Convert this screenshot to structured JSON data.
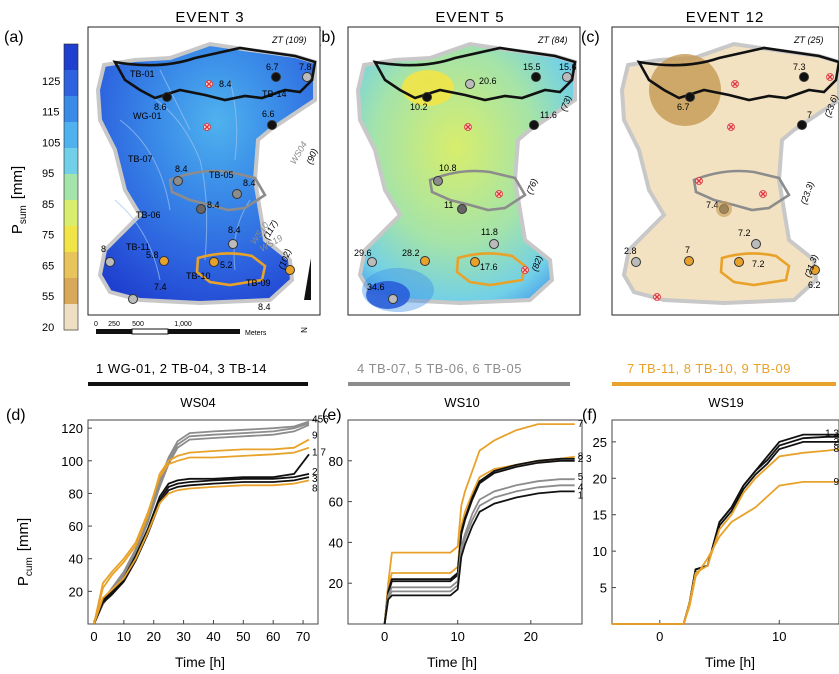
{
  "panels": {
    "a": {
      "letter": "(a)",
      "event": "EVENT 3",
      "zt": "ZT (109)"
    },
    "b": {
      "letter": "(b)",
      "event": "EVENT 5",
      "zt": "ZT (84)"
    },
    "c": {
      "letter": "(c)",
      "event": "EVENT 12",
      "zt": "ZT (25)"
    }
  },
  "colorbar": {
    "label_main": "P",
    "label_sub": "sum",
    "label_unit": "[mm]",
    "ticks": [
      "125",
      "115",
      "105",
      "95",
      "85",
      "75",
      "65",
      "55",
      "20"
    ],
    "colors": [
      "#1f3fcf",
      "#2d63df",
      "#3a8be8",
      "#4fb2ee",
      "#71d0e8",
      "#a4e3a9",
      "#d8ee6c",
      "#f1e447",
      "#e7c45c",
      "#d8a95b",
      "#eedfc3"
    ]
  },
  "map_a": {
    "stations": [
      {
        "name": "TB-01",
        "val": "8.4"
      },
      {
        "name": "WG-01",
        "val": "8.6"
      },
      {
        "name": "TB-14",
        "val": "6.6"
      },
      {
        "name": "TB-07",
        "val": "8.4"
      },
      {
        "name": "TB-05",
        "val": "8.4"
      },
      {
        "name": "TB-06",
        "val": "8.4"
      },
      {
        "name": "TB-11",
        "val": "5.8"
      },
      {
        "name": "TB-10",
        "val": "5.2"
      },
      {
        "name": "TB-09",
        "val": ""
      }
    ],
    "extra_vals": [
      "6.7",
      "7.8",
      "8",
      "8.4",
      "7.4",
      "8.4"
    ],
    "ws": [
      {
        "name": "WS04",
        "area": "(90)"
      },
      {
        "name": "WS10",
        "area": "(117)"
      },
      {
        "name": "WS19",
        "area": "(102)"
      }
    ],
    "scale": {
      "z": "0",
      "a": "250",
      "b": "500",
      "c": "1,000",
      "unit": "Meters"
    },
    "north": "N"
  },
  "map_b": {
    "vals": [
      "20.6",
      "15.5",
      "15.6",
      "10.2",
      "11.6",
      "10.8",
      "11",
      "11.8",
      "29.6",
      "28.2",
      "17.6",
      "34.6"
    ],
    "areas": [
      "(73)",
      "(76)",
      "(82)"
    ]
  },
  "map_c": {
    "vals": [
      "7.3",
      "6.7",
      "7",
      "7.4",
      "7.2",
      "2.8",
      "7",
      "7.2",
      "6.2"
    ],
    "areas": [
      "(23.6)",
      "(23.3)",
      "(21.3)"
    ]
  },
  "legends": [
    {
      "text": "1 WG-01, 2 TB-04, 3 TB-14",
      "color": "#111111",
      "ws": "WS04"
    },
    {
      "text": "4 TB-07,  5 TB-06, 6 TB-05",
      "color": "#8c8c8c",
      "ws": "WS10"
    },
    {
      "text": "7  TB-11, 8 TB-10, 9 TB-09",
      "color": "#e8a22a",
      "ws": "WS19"
    }
  ],
  "bottom": {
    "ylabel_main": "P",
    "ylabel_sub": "cum",
    "ylabel_unit": "[mm]",
    "xlabel": "Time [h]",
    "d": {
      "letter": "(d)",
      "xticks": [
        "0",
        "10",
        "20",
        "30",
        "40",
        "50",
        "60",
        "70"
      ],
      "yticks": [
        "20",
        "40",
        "60",
        "80",
        "100",
        "120"
      ],
      "end_labels": [
        "456",
        "9",
        "1 7",
        "2",
        "3",
        "8"
      ]
    },
    "e": {
      "letter": "(e)",
      "xticks": [
        "0",
        "10",
        "20"
      ],
      "yticks": [
        "20",
        "40",
        "60",
        "80"
      ],
      "end_labels": [
        "7",
        "8",
        "2 3",
        "5",
        "4",
        "1"
      ]
    },
    "f": {
      "letter": "(f)",
      "xticks": [
        "0",
        "10"
      ],
      "yticks": [
        "5",
        "10",
        "15",
        "20",
        "25"
      ],
      "end_labels": [
        "1 3",
        "2",
        "8",
        "9"
      ]
    }
  },
  "chart_data": [
    {
      "type": "line",
      "panel": "(d)",
      "xlim": [
        -2,
        75
      ],
      "ylim": [
        0,
        125
      ],
      "series": [
        {
          "name": "4",
          "color": "#8c8c8c",
          "x": [
            0,
            3,
            6,
            10,
            14,
            18,
            22,
            25,
            28,
            32,
            40,
            50,
            60,
            67,
            72
          ],
          "y": [
            0,
            14,
            22,
            32,
            46,
            64,
            88,
            102,
            112,
            117,
            118,
            119,
            120,
            121,
            124
          ]
        },
        {
          "name": "5",
          "color": "#8c8c8c",
          "x": [
            0,
            3,
            6,
            10,
            14,
            18,
            22,
            25,
            28,
            32,
            40,
            50,
            60,
            67,
            72
          ],
          "y": [
            0,
            13,
            21,
            31,
            45,
            63,
            86,
            100,
            110,
            115,
            116,
            117,
            118,
            120,
            123
          ]
        },
        {
          "name": "6",
          "color": "#8c8c8c",
          "x": [
            0,
            3,
            6,
            10,
            14,
            18,
            22,
            25,
            28,
            32,
            40,
            50,
            60,
            67,
            72
          ],
          "y": [
            0,
            12,
            20,
            30,
            44,
            62,
            84,
            98,
            108,
            113,
            114,
            115,
            116,
            118,
            122
          ]
        },
        {
          "name": "9",
          "color": "#e8a22a",
          "x": [
            0,
            3,
            6,
            10,
            14,
            18,
            22,
            25,
            28,
            32,
            40,
            50,
            60,
            67,
            72
          ],
          "y": [
            0,
            22,
            30,
            38,
            48,
            66,
            92,
            100,
            103,
            105,
            106,
            107,
            107,
            108,
            113
          ]
        },
        {
          "name": "7",
          "color": "#e8a22a",
          "x": [
            0,
            3,
            6,
            10,
            14,
            18,
            22,
            25,
            28,
            32,
            40,
            50,
            60,
            67,
            72
          ],
          "y": [
            0,
            25,
            32,
            40,
            50,
            68,
            90,
            98,
            100,
            102,
            102,
            103,
            104,
            105,
            108
          ]
        },
        {
          "name": "1",
          "color": "#111111",
          "x": [
            0,
            3,
            6,
            10,
            14,
            18,
            22,
            25,
            28,
            32,
            40,
            50,
            60,
            67,
            72
          ],
          "y": [
            0,
            15,
            20,
            28,
            42,
            58,
            78,
            86,
            88,
            89,
            89,
            90,
            90,
            92,
            104
          ]
        },
        {
          "name": "2",
          "color": "#111111",
          "x": [
            0,
            3,
            6,
            10,
            14,
            18,
            22,
            25,
            28,
            32,
            40,
            50,
            60,
            67,
            72
          ],
          "y": [
            0,
            14,
            19,
            27,
            40,
            56,
            76,
            84,
            86,
            87,
            88,
            89,
            89,
            90,
            92
          ]
        },
        {
          "name": "3",
          "color": "#111111",
          "x": [
            0,
            3,
            6,
            10,
            14,
            18,
            22,
            25,
            28,
            32,
            40,
            50,
            60,
            67,
            72
          ],
          "y": [
            0,
            13,
            18,
            26,
            39,
            55,
            74,
            82,
            84,
            85,
            86,
            87,
            87,
            88,
            90
          ]
        },
        {
          "name": "8",
          "color": "#e8a22a",
          "x": [
            0,
            3,
            6,
            10,
            14,
            18,
            22,
            25,
            28,
            32,
            40,
            50,
            60,
            67,
            72
          ],
          "y": [
            0,
            16,
            21,
            28,
            40,
            56,
            74,
            80,
            82,
            83,
            84,
            85,
            85,
            86,
            88
          ]
        }
      ]
    },
    {
      "type": "line",
      "panel": "(e)",
      "xlim": [
        -5,
        27
      ],
      "ylim": [
        0,
        100
      ],
      "series": [
        {
          "name": "7",
          "color": "#e8a22a",
          "x": [
            0,
            0.5,
            1,
            9,
            10,
            10.5,
            11,
            12,
            13,
            15,
            18,
            21,
            24,
            26
          ],
          "y": [
            0,
            20,
            35,
            35,
            38,
            58,
            65,
            75,
            85,
            90,
            95,
            98,
            98,
            98
          ]
        },
        {
          "name": "8",
          "color": "#e8a22a",
          "x": [
            0,
            0.5,
            1,
            9,
            10,
            10.5,
            11,
            12,
            13,
            15,
            18,
            21,
            24,
            26
          ],
          "y": [
            0,
            18,
            25,
            25,
            28,
            48,
            55,
            64,
            72,
            76,
            78,
            80,
            81,
            82
          ]
        },
        {
          "name": "2",
          "color": "#111111",
          "x": [
            0,
            0.5,
            1,
            9,
            10,
            10.5,
            11,
            12,
            13,
            15,
            18,
            21,
            24,
            26
          ],
          "y": [
            0,
            16,
            22,
            22,
            25,
            45,
            52,
            62,
            70,
            75,
            78,
            80,
            81,
            81
          ]
        },
        {
          "name": "3",
          "color": "#111111",
          "x": [
            0,
            0.5,
            1,
            9,
            10,
            10.5,
            11,
            12,
            13,
            15,
            18,
            21,
            24,
            26
          ],
          "y": [
            0,
            15,
            21,
            21,
            24,
            44,
            51,
            61,
            69,
            74,
            77,
            79,
            80,
            80
          ]
        },
        {
          "name": "5",
          "color": "#8c8c8c",
          "x": [
            0,
            0.5,
            1,
            9,
            10,
            10.5,
            11,
            12,
            13,
            15,
            18,
            21,
            24,
            26
          ],
          "y": [
            0,
            14,
            18,
            18,
            21,
            38,
            44,
            54,
            61,
            65,
            68,
            70,
            71,
            71
          ]
        },
        {
          "name": "4",
          "color": "#8c8c8c",
          "x": [
            0,
            0.5,
            1,
            9,
            10,
            10.5,
            11,
            12,
            13,
            15,
            18,
            21,
            24,
            26
          ],
          "y": [
            0,
            13,
            16,
            16,
            19,
            36,
            42,
            51,
            58,
            62,
            65,
            67,
            68,
            68
          ]
        },
        {
          "name": "1",
          "color": "#111111",
          "x": [
            0,
            0.5,
            1,
            9,
            10,
            10.5,
            11,
            12,
            13,
            15,
            18,
            21,
            24,
            26
          ],
          "y": [
            0,
            12,
            14,
            14,
            17,
            33,
            39,
            48,
            55,
            59,
            62,
            64,
            65,
            65
          ]
        }
      ]
    },
    {
      "type": "line",
      "panel": "(f)",
      "xlim": [
        -4,
        15
      ],
      "ylim": [
        0,
        28
      ],
      "series": [
        {
          "name": "1",
          "color": "#111111",
          "x": [
            -4,
            2,
            2.5,
            3,
            4,
            5,
            6,
            7,
            8,
            9,
            10,
            12,
            14,
            15
          ],
          "y": [
            0,
            0,
            3,
            7.5,
            8,
            14,
            16,
            19,
            21,
            23,
            25,
            26,
            26,
            26
          ]
        },
        {
          "name": "3",
          "color": "#111111",
          "x": [
            -4,
            2,
            2.5,
            3,
            4,
            5,
            6,
            7,
            8,
            9,
            10,
            12,
            14,
            15
          ],
          "y": [
            0,
            0,
            3,
            7.5,
            8,
            14,
            16,
            19,
            21,
            22.5,
            24.5,
            25.5,
            25.7,
            25.7
          ]
        },
        {
          "name": "2",
          "color": "#111111",
          "x": [
            -4,
            2,
            2.5,
            3,
            4,
            5,
            6,
            7,
            8,
            9,
            10,
            12,
            14,
            15
          ],
          "y": [
            0,
            0,
            3,
            7.5,
            8,
            13.5,
            15.5,
            18.5,
            20.5,
            22,
            24,
            25,
            25,
            25
          ]
        },
        {
          "name": "8",
          "color": "#e8a22a",
          "x": [
            -4,
            2,
            2.5,
            3,
            4,
            5,
            6,
            7,
            8,
            9,
            10,
            12,
            14,
            15
          ],
          "y": [
            0,
            0,
            3,
            7,
            8,
            13,
            15,
            18,
            20,
            21.5,
            23,
            23.5,
            23.8,
            24
          ]
        },
        {
          "name": "9",
          "color": "#e8a22a",
          "x": [
            -4,
            2,
            2.5,
            3,
            4,
            5,
            6,
            7,
            8,
            9,
            10,
            12,
            14,
            15
          ],
          "y": [
            0,
            0,
            2.5,
            6.5,
            9,
            12,
            14,
            15,
            16,
            17.5,
            19,
            19.5,
            19.5,
            19.5
          ]
        }
      ]
    }
  ]
}
